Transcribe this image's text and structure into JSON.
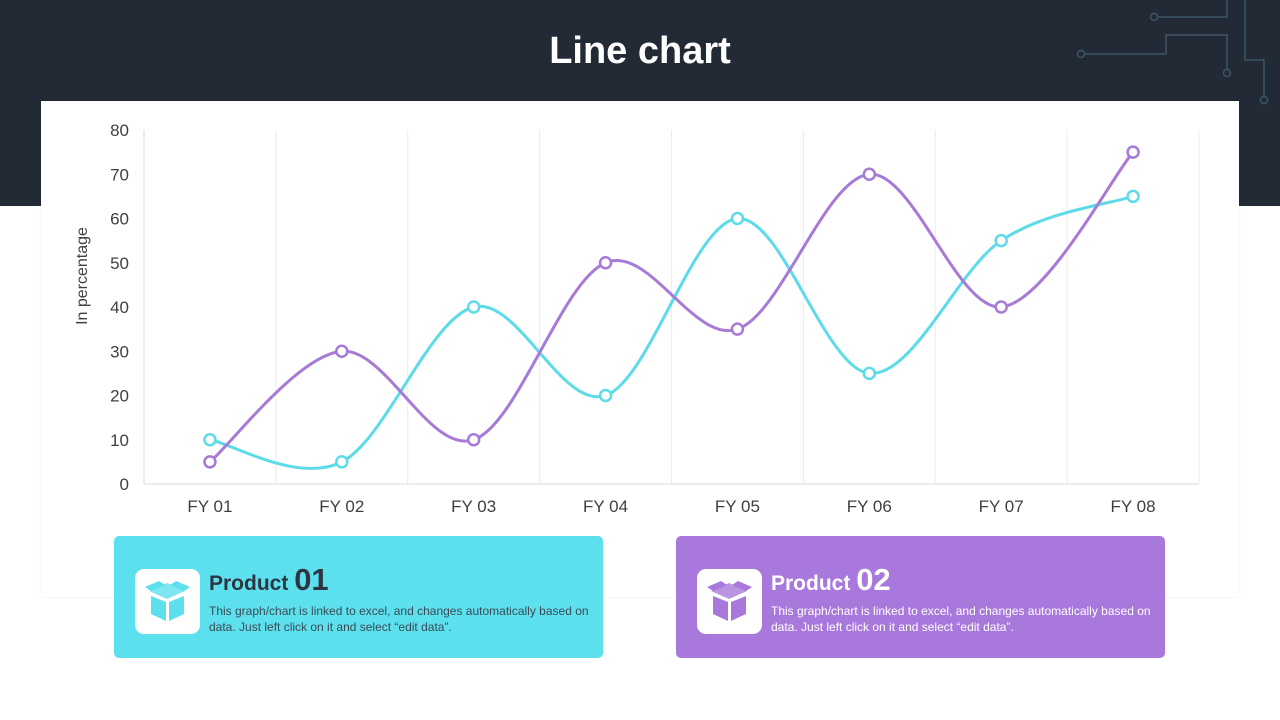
{
  "title": "Line chart",
  "colors": {
    "product1": "#5ddbe8",
    "product2": "#a77ad6"
  },
  "chart_data": {
    "type": "line",
    "ylabel": "In percentage",
    "xlabel": "",
    "categories": [
      "FY 01",
      "FY 02",
      "FY 03",
      "FY 04",
      "FY 05",
      "FY 06",
      "FY 07",
      "FY 08"
    ],
    "yticks": [
      "0",
      "10",
      "20",
      "30",
      "40",
      "50",
      "60",
      "70",
      "80"
    ],
    "ylim": [
      0,
      80
    ],
    "grid": "vertical",
    "series": [
      {
        "name": "Product 01",
        "values": [
          10,
          5,
          40,
          20,
          60,
          25,
          55,
          65
        ]
      },
      {
        "name": "Product 02",
        "values": [
          5,
          30,
          10,
          50,
          35,
          70,
          40,
          75
        ]
      }
    ]
  },
  "cards": [
    {
      "label": "Product",
      "num": "01",
      "desc": "This graph/chart is linked to excel, and changes automatically based on data. Just left click on it and select “edit data”."
    },
    {
      "label": "Product",
      "num": "02",
      "desc": "This graph/chart is linked to excel, and changes automatically based on data. Just left click on it and select “edit data”."
    }
  ]
}
